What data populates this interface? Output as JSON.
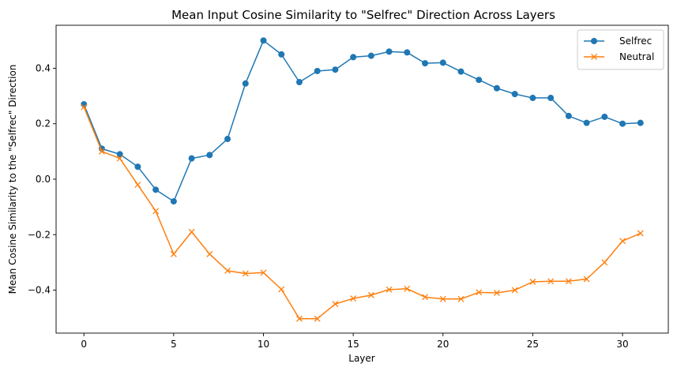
{
  "chart_data": {
    "type": "line",
    "title": "Mean Input Cosine Similarity to \"Selfrec\" Direction Across Layers",
    "xlabel": "Layer",
    "ylabel": "Mean Cosine Similarity to the \"Selfrec\" Direction",
    "xlim": [
      -1.55,
      32.55
    ],
    "ylim": [
      -0.555,
      0.555
    ],
    "x_ticks": [
      0,
      5,
      10,
      15,
      20,
      25,
      30
    ],
    "x_tick_labels": [
      "0",
      "5",
      "10",
      "15",
      "20",
      "25",
      "30"
    ],
    "y_ticks": [
      -0.4,
      -0.2,
      0.0,
      0.2,
      0.4
    ],
    "y_tick_labels": [
      "−0.4",
      "−0.2",
      "0.0",
      "0.2",
      "0.4"
    ],
    "grid": false,
    "legend_position": "top-right",
    "x": [
      0,
      1,
      2,
      3,
      4,
      5,
      6,
      7,
      8,
      9,
      10,
      11,
      12,
      13,
      14,
      15,
      16,
      17,
      18,
      19,
      20,
      21,
      22,
      23,
      24,
      25,
      26,
      27,
      28,
      29,
      30,
      31
    ],
    "series": [
      {
        "name": "Selfrec",
        "color": "#1f77b4",
        "marker": "circle",
        "values": [
          0.27,
          0.11,
          0.09,
          0.045,
          -0.038,
          -0.08,
          0.075,
          0.087,
          0.145,
          0.345,
          0.5,
          0.45,
          0.35,
          0.39,
          0.395,
          0.44,
          0.445,
          0.46,
          0.457,
          0.418,
          0.42,
          0.388,
          0.358,
          0.328,
          0.307,
          0.293,
          0.293,
          0.228,
          0.203,
          0.225,
          0.2,
          0.203
        ]
      },
      {
        "name": "Neutral",
        "color": "#ff7f0e",
        "marker": "x",
        "values": [
          0.26,
          0.1,
          0.075,
          -0.02,
          -0.115,
          -0.27,
          -0.19,
          -0.27,
          -0.33,
          -0.34,
          -0.337,
          -0.397,
          -0.503,
          -0.503,
          -0.45,
          -0.43,
          -0.418,
          -0.398,
          -0.395,
          -0.425,
          -0.432,
          -0.432,
          -0.408,
          -0.41,
          -0.4,
          -0.37,
          -0.368,
          -0.368,
          -0.36,
          -0.3,
          -0.223,
          -0.195
        ]
      }
    ]
  }
}
